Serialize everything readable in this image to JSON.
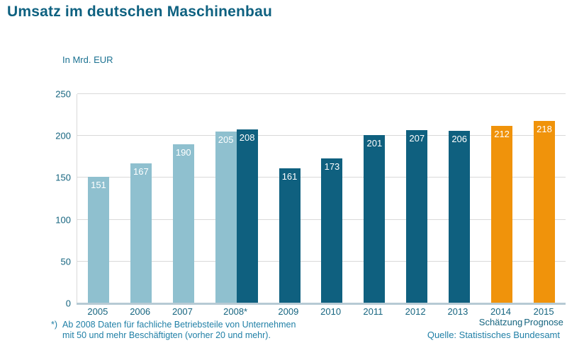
{
  "title": "Umsatz im deutschen Maschinenbau",
  "axis_unit_label": "In Mrd. EUR",
  "footnote": {
    "marker": "*)",
    "line1": "Ab 2008 Daten für fachliche Betriebsteile von Unternehmen",
    "line2": "mit 50 und mehr Beschäftigten (vorher 20 und mehr)."
  },
  "source": "Quelle: Statistisches Bundesamt",
  "colors": {
    "light_blue": "#8FC0CF",
    "dark_teal": "#0F607F",
    "orange": "#F0930B",
    "title_text": "#0E6180",
    "axis_label_text": "#15647F",
    "note_text": "#1F7FA6",
    "gridline": "#D9D9D9",
    "baseline": "#B6CAD4",
    "bar_value_text": "#FFFFFF"
  },
  "chart_data": {
    "type": "bar",
    "title": "Umsatz im deutschen Maschinenbau",
    "ylabel": "In Mrd. EUR",
    "xlabel": "",
    "ylim": [
      0,
      250
    ],
    "yticks": [
      0,
      50,
      100,
      150,
      200,
      250
    ],
    "grid": true,
    "legend": false,
    "groups": [
      {
        "label": "2005",
        "sublabel": "",
        "bars": [
          {
            "value": 151,
            "color": "light_blue"
          }
        ]
      },
      {
        "label": "2006",
        "sublabel": "",
        "bars": [
          {
            "value": 167,
            "color": "light_blue"
          }
        ]
      },
      {
        "label": "2007",
        "sublabel": "",
        "bars": [
          {
            "value": 190,
            "color": "light_blue"
          }
        ]
      },
      {
        "label": "2008*",
        "sublabel": "",
        "bars": [
          {
            "value": 205,
            "color": "light_blue"
          },
          {
            "value": 208,
            "color": "dark_teal"
          }
        ]
      },
      {
        "label": "2009",
        "sublabel": "",
        "bars": [
          {
            "value": 161,
            "color": "dark_teal"
          }
        ]
      },
      {
        "label": "2010",
        "sublabel": "",
        "bars": [
          {
            "value": 173,
            "color": "dark_teal"
          }
        ]
      },
      {
        "label": "2011",
        "sublabel": "",
        "bars": [
          {
            "value": 201,
            "color": "dark_teal"
          }
        ]
      },
      {
        "label": "2012",
        "sublabel": "",
        "bars": [
          {
            "value": 207,
            "color": "dark_teal"
          }
        ]
      },
      {
        "label": "2013",
        "sublabel": "",
        "bars": [
          {
            "value": 206,
            "color": "dark_teal"
          }
        ]
      },
      {
        "label": "2014",
        "sublabel": "Schätzung",
        "bars": [
          {
            "value": 212,
            "color": "orange"
          }
        ]
      },
      {
        "label": "2015",
        "sublabel": "Prognose",
        "bars": [
          {
            "value": 218,
            "color": "orange"
          }
        ]
      }
    ]
  }
}
